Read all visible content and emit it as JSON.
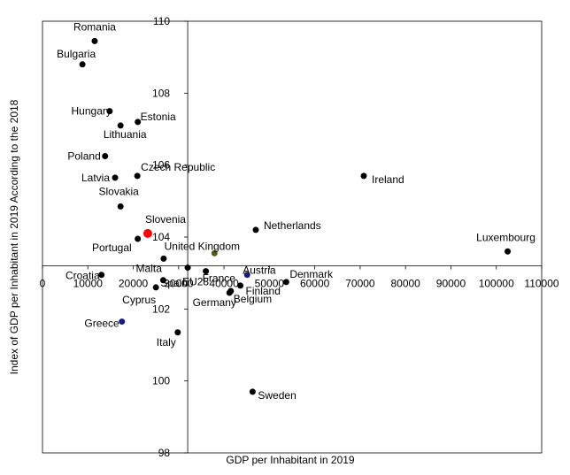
{
  "chart_data": {
    "type": "scatter",
    "title": "",
    "xlabel": "GDP per Inhabitant in 2019",
    "ylabel": "Index of GDP per Inhabitant in 2019 According to the 2018",
    "xlim": [
      0,
      110000
    ],
    "ylim": [
      98,
      110
    ],
    "x_cross_y": 103.2,
    "x_ticks": [
      0,
      10000,
      20000,
      30000,
      40000,
      50000,
      60000,
      70000,
      80000,
      90000,
      100000,
      110000
    ],
    "x_tick_labels": [
      "0",
      "10000",
      "20000",
      "30000",
      "40000",
      "50000",
      "60000",
      "70000",
      "80000",
      "90000",
      "100000",
      "110000"
    ],
    "y_ticks": [
      98,
      100,
      102,
      104,
      106,
      108,
      110
    ],
    "y_tick_labels": [
      "98",
      "100",
      "102",
      "104",
      "106",
      "108",
      "110"
    ],
    "grid": false,
    "colors": {
      "default": "#000000",
      "highlight_red": "#ff0000",
      "highlight_olive": "#4d5a1a",
      "highlight_navy": "#1a1a7a"
    },
    "points": [
      {
        "name": "Romania",
        "x": 11500,
        "y": 109.45
      },
      {
        "name": "Bulgaria",
        "x": 8800,
        "y": 108.8
      },
      {
        "name": "Hungary",
        "x": 14800,
        "y": 107.5
      },
      {
        "name": "Estonia",
        "x": 21000,
        "y": 107.2
      },
      {
        "name": "Lithuania",
        "x": 17200,
        "y": 107.1
      },
      {
        "name": "Poland",
        "x": 13800,
        "y": 106.25
      },
      {
        "name": "Latvia",
        "x": 16000,
        "y": 105.65
      },
      {
        "name": "Czech Republic",
        "x": 20900,
        "y": 105.7
      },
      {
        "name": "Ireland",
        "x": 70800,
        "y": 105.7
      },
      {
        "name": "Slovakia",
        "x": 17200,
        "y": 104.85
      },
      {
        "name": "Netherlands",
        "x": 47000,
        "y": 104.2
      },
      {
        "name": "Slovenia",
        "x": 23200,
        "y": 104.1,
        "color": "highlight_red",
        "size": "large"
      },
      {
        "name": "Portugal",
        "x": 21000,
        "y": 103.95
      },
      {
        "name": "Luxembourg",
        "x": 102500,
        "y": 103.6
      },
      {
        "name": "United Kingdom",
        "x": 37900,
        "y": 103.55,
        "color": "highlight_olive"
      },
      {
        "name": "Malta",
        "x": 26700,
        "y": 103.4
      },
      {
        "name": "France",
        "x": 36000,
        "y": 103.05
      },
      {
        "name": "EU28",
        "x": 32000,
        "y": 103.15
      },
      {
        "name": "Austria",
        "x": 45100,
        "y": 102.95,
        "color": "highlight_navy"
      },
      {
        "name": "Croatia",
        "x": 13000,
        "y": 102.95
      },
      {
        "name": "Denmark",
        "x": 53700,
        "y": 102.75
      },
      {
        "name": "Cyprus",
        "x": 25000,
        "y": 102.6
      },
      {
        "name": "Spain",
        "x": 26600,
        "y": 102.8
      },
      {
        "name": "Finland",
        "x": 43600,
        "y": 102.65
      },
      {
        "name": "Belgium",
        "x": 41500,
        "y": 102.5
      },
      {
        "name": "Germany",
        "x": 41200,
        "y": 102.45
      },
      {
        "name": "Greece",
        "x": 17500,
        "y": 101.65,
        "color": "highlight_navy"
      },
      {
        "name": "Italy",
        "x": 29800,
        "y": 101.35
      },
      {
        "name": "Sweden",
        "x": 46300,
        "y": 99.7
      }
    ]
  }
}
